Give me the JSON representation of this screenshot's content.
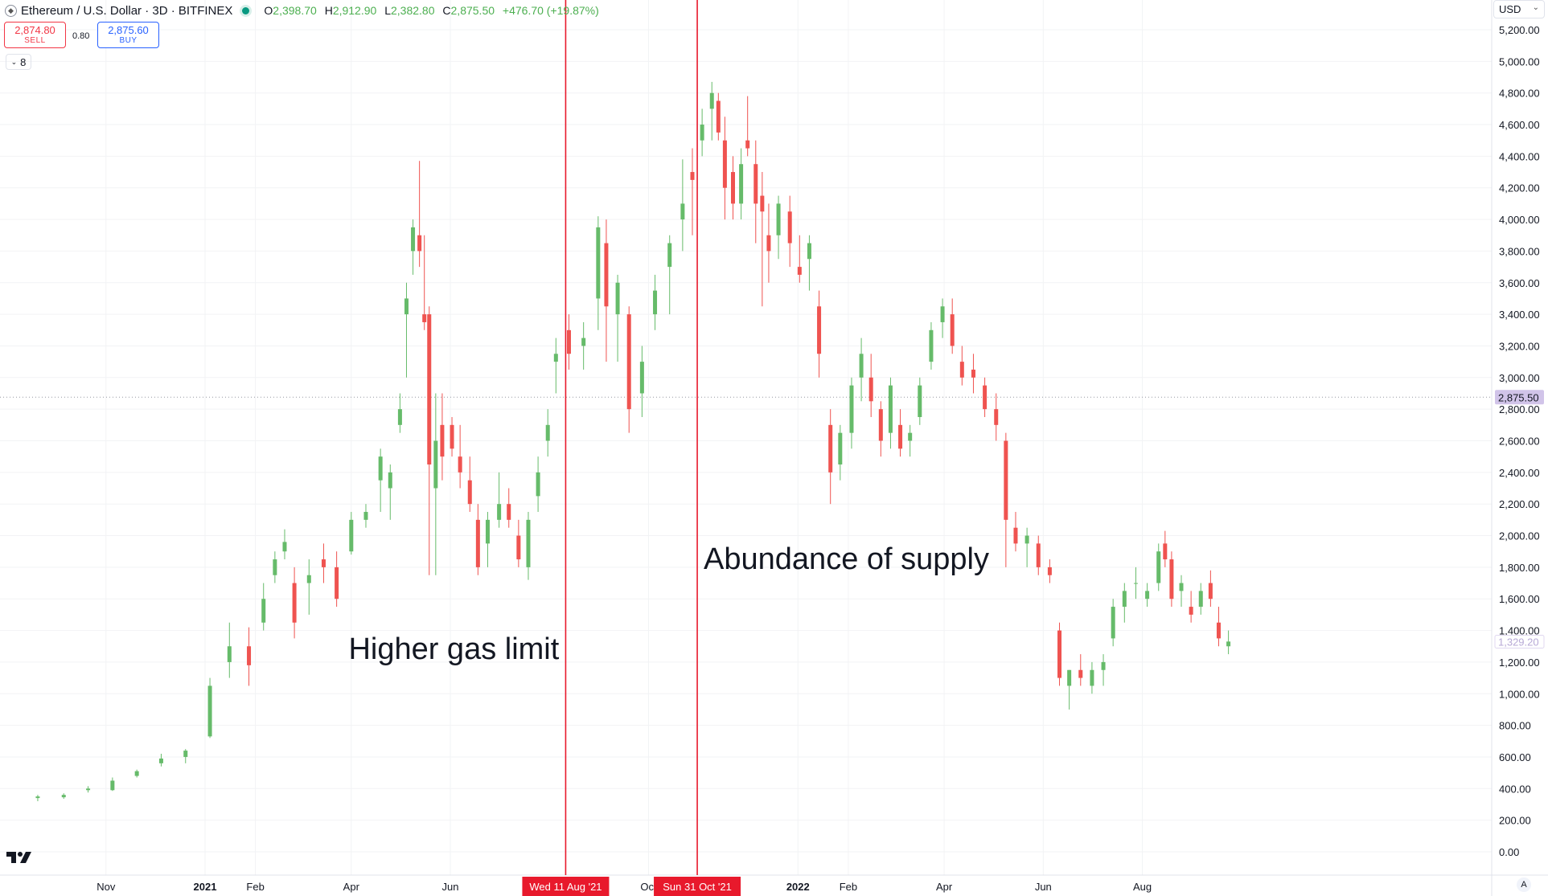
{
  "symbol": {
    "title": "Ethereum / U.S. Dollar · 3D · BITFINEX",
    "ohlc": {
      "o_label": "O",
      "o": "2,398.70",
      "h_label": "H",
      "h": "2,912.90",
      "l_label": "L",
      "l": "2,382.80",
      "c_label": "C",
      "c": "2,875.50",
      "change": "+476.70 (+19.87%)"
    }
  },
  "trade": {
    "sell_price": "2,874.80",
    "sell_label": "SELL",
    "spread": "0.80",
    "buy_price": "2,875.60",
    "buy_label": "BUY"
  },
  "indicators_count": "8",
  "currency": "USD",
  "auto_label": "A",
  "colors": {
    "up": "#66bb6a",
    "down": "#ef5350",
    "marker": "#e8192c",
    "grid": "#f2f3f5",
    "price_tag": "#d1c4e9"
  },
  "chart_data": {
    "type": "candlestick",
    "ylim": [
      0,
      5200
    ],
    "y_ticks": [
      "0.00",
      "200.00",
      "400.00",
      "600.00",
      "800.00",
      "1,000.00",
      "1,200.00",
      "1,400.00",
      "1,600.00",
      "1,800.00",
      "2,000.00",
      "2,200.00",
      "2,400.00",
      "2,600.00",
      "2,800.00",
      "3,000.00",
      "3,200.00",
      "3,400.00",
      "3,600.00",
      "3,800.00",
      "4,000.00",
      "4,200.00",
      "4,400.00",
      "4,600.00",
      "4,800.00",
      "5,000.00",
      "5,200.00"
    ],
    "x_ticks": [
      {
        "date": "2020-11-01",
        "label": "Nov",
        "bold": false
      },
      {
        "date": "2021-01-01",
        "label": "2021",
        "bold": true
      },
      {
        "date": "2021-02-01",
        "label": "Feb",
        "bold": false
      },
      {
        "date": "2021-04-01",
        "label": "Apr",
        "bold": false
      },
      {
        "date": "2021-06-01",
        "label": "Jun",
        "bold": false
      },
      {
        "date": "2021-10-01",
        "label": "Oct",
        "bold": false
      },
      {
        "date": "2022-01-01",
        "label": "2022",
        "bold": true
      },
      {
        "date": "2022-02-01",
        "label": "Feb",
        "bold": false
      },
      {
        "date": "2022-04-01",
        "label": "Apr",
        "bold": false
      },
      {
        "date": "2022-06-01",
        "label": "Jun",
        "bold": false
      },
      {
        "date": "2022-08-01",
        "label": "Aug",
        "bold": false
      }
    ],
    "markers": [
      {
        "date": "2021-08-11",
        "label": "Wed 11 Aug '21",
        "annotation": "Higher gas limit"
      },
      {
        "date": "2021-10-31",
        "label": "Sun 31 Oct '21",
        "annotation": "Abundance of supply"
      }
    ],
    "current_price": {
      "value": 2875.5,
      "label": "2,875.50"
    },
    "last_close": {
      "value": 1329.2,
      "label": "1,329.20"
    },
    "series": [
      {
        "date": "2020-09-20",
        "o": 340,
        "h": 360,
        "l": 320,
        "c": 350
      },
      {
        "date": "2020-10-06",
        "o": 345,
        "h": 370,
        "l": 335,
        "c": 360
      },
      {
        "date": "2020-10-21",
        "o": 390,
        "h": 415,
        "l": 375,
        "c": 400
      },
      {
        "date": "2020-11-05",
        "o": 390,
        "h": 470,
        "l": 385,
        "c": 450
      },
      {
        "date": "2020-11-20",
        "o": 480,
        "h": 520,
        "l": 470,
        "c": 510
      },
      {
        "date": "2020-12-05",
        "o": 560,
        "h": 620,
        "l": 540,
        "c": 590
      },
      {
        "date": "2020-12-20",
        "o": 600,
        "h": 650,
        "l": 560,
        "c": 640
      },
      {
        "date": "2021-01-04",
        "o": 730,
        "h": 1100,
        "l": 720,
        "c": 1050
      },
      {
        "date": "2021-01-16",
        "o": 1200,
        "h": 1450,
        "l": 1100,
        "c": 1300
      },
      {
        "date": "2021-01-28",
        "o": 1300,
        "h": 1420,
        "l": 1050,
        "c": 1180
      },
      {
        "date": "2021-02-06",
        "o": 1450,
        "h": 1700,
        "l": 1400,
        "c": 1600
      },
      {
        "date": "2021-02-13",
        "o": 1750,
        "h": 1900,
        "l": 1700,
        "c": 1850
      },
      {
        "date": "2021-02-19",
        "o": 1900,
        "h": 2040,
        "l": 1850,
        "c": 1960
      },
      {
        "date": "2021-02-25",
        "o": 1700,
        "h": 1800,
        "l": 1350,
        "c": 1450
      },
      {
        "date": "2021-03-06",
        "o": 1700,
        "h": 1850,
        "l": 1500,
        "c": 1750
      },
      {
        "date": "2021-03-15",
        "o": 1850,
        "h": 1950,
        "l": 1700,
        "c": 1800
      },
      {
        "date": "2021-03-23",
        "o": 1800,
        "h": 1900,
        "l": 1550,
        "c": 1600
      },
      {
        "date": "2021-04-01",
        "o": 1900,
        "h": 2150,
        "l": 1880,
        "c": 2100
      },
      {
        "date": "2021-04-10",
        "o": 2100,
        "h": 2200,
        "l": 2050,
        "c": 2150
      },
      {
        "date": "2021-04-19",
        "o": 2350,
        "h": 2550,
        "l": 2150,
        "c": 2500
      },
      {
        "date": "2021-04-25",
        "o": 2300,
        "h": 2450,
        "l": 2100,
        "c": 2400
      },
      {
        "date": "2021-05-01",
        "o": 2700,
        "h": 2900,
        "l": 2650,
        "c": 2800
      },
      {
        "date": "2021-05-05",
        "o": 3400,
        "h": 3600,
        "l": 3000,
        "c": 3500
      },
      {
        "date": "2021-05-09",
        "o": 3800,
        "h": 4000,
        "l": 3650,
        "c": 3950
      },
      {
        "date": "2021-05-13",
        "o": 3900,
        "h": 4370,
        "l": 3700,
        "c": 3800
      },
      {
        "date": "2021-05-16",
        "o": 3400,
        "h": 3900,
        "l": 3300,
        "c": 3350
      },
      {
        "date": "2021-05-19",
        "o": 3400,
        "h": 3450,
        "l": 1750,
        "c": 2450
      },
      {
        "date": "2021-05-23",
        "o": 2300,
        "h": 2900,
        "l": 1750,
        "c": 2600
      },
      {
        "date": "2021-05-27",
        "o": 2700,
        "h": 2900,
        "l": 2350,
        "c": 2500
      },
      {
        "date": "2021-06-02",
        "o": 2700,
        "h": 2750,
        "l": 2500,
        "c": 2550
      },
      {
        "date": "2021-06-07",
        "o": 2500,
        "h": 2700,
        "l": 2300,
        "c": 2400
      },
      {
        "date": "2021-06-13",
        "o": 2350,
        "h": 2500,
        "l": 2150,
        "c": 2200
      },
      {
        "date": "2021-06-18",
        "o": 2100,
        "h": 2200,
        "l": 1750,
        "c": 1800
      },
      {
        "date": "2021-06-24",
        "o": 1950,
        "h": 2150,
        "l": 1800,
        "c": 2100
      },
      {
        "date": "2021-07-01",
        "o": 2100,
        "h": 2400,
        "l": 2050,
        "c": 2200
      },
      {
        "date": "2021-07-07",
        "o": 2200,
        "h": 2300,
        "l": 2050,
        "c": 2100
      },
      {
        "date": "2021-07-13",
        "o": 2000,
        "h": 2100,
        "l": 1800,
        "c": 1850
      },
      {
        "date": "2021-07-19",
        "o": 1800,
        "h": 2150,
        "l": 1720,
        "c": 2100
      },
      {
        "date": "2021-07-25",
        "o": 2250,
        "h": 2500,
        "l": 2150,
        "c": 2400
      },
      {
        "date": "2021-07-31",
        "o": 2600,
        "h": 2800,
        "l": 2500,
        "c": 2700
      },
      {
        "date": "2021-08-05",
        "o": 3100,
        "h": 3250,
        "l": 2900,
        "c": 3150
      },
      {
        "date": "2021-08-13",
        "o": 3300,
        "h": 3400,
        "l": 3050,
        "c": 3150
      },
      {
        "date": "2021-08-22",
        "o": 3200,
        "h": 3350,
        "l": 3050,
        "c": 3250
      },
      {
        "date": "2021-08-31",
        "o": 3500,
        "h": 4020,
        "l": 3300,
        "c": 3950
      },
      {
        "date": "2021-09-05",
        "o": 3850,
        "h": 4000,
        "l": 3100,
        "c": 3450
      },
      {
        "date": "2021-09-12",
        "o": 3400,
        "h": 3650,
        "l": 3100,
        "c": 3600
      },
      {
        "date": "2021-09-19",
        "o": 3400,
        "h": 3450,
        "l": 2650,
        "c": 2800
      },
      {
        "date": "2021-09-27",
        "o": 2900,
        "h": 3200,
        "l": 2750,
        "c": 3100
      },
      {
        "date": "2021-10-05",
        "o": 3400,
        "h": 3650,
        "l": 3300,
        "c": 3550
      },
      {
        "date": "2021-10-14",
        "o": 3700,
        "h": 3900,
        "l": 3400,
        "c": 3850
      },
      {
        "date": "2021-10-22",
        "o": 4000,
        "h": 4380,
        "l": 3800,
        "c": 4100
      },
      {
        "date": "2021-10-28",
        "o": 4300,
        "h": 4450,
        "l": 3900,
        "c": 4250
      },
      {
        "date": "2021-11-03",
        "o": 4500,
        "h": 4700,
        "l": 4400,
        "c": 4600
      },
      {
        "date": "2021-11-09",
        "o": 4700,
        "h": 4870,
        "l": 4500,
        "c": 4800
      },
      {
        "date": "2021-11-13",
        "o": 4750,
        "h": 4800,
        "l": 4500,
        "c": 4550
      },
      {
        "date": "2021-11-17",
        "o": 4500,
        "h": 4650,
        "l": 4000,
        "c": 4200
      },
      {
        "date": "2021-11-22",
        "o": 4300,
        "h": 4400,
        "l": 4000,
        "c": 4100
      },
      {
        "date": "2021-11-27",
        "o": 4100,
        "h": 4450,
        "l": 4000,
        "c": 4350
      },
      {
        "date": "2021-12-01",
        "o": 4500,
        "h": 4780,
        "l": 4400,
        "c": 4450
      },
      {
        "date": "2021-12-06",
        "o": 4350,
        "h": 4500,
        "l": 3850,
        "c": 4100
      },
      {
        "date": "2021-12-10",
        "o": 4150,
        "h": 4300,
        "l": 3450,
        "c": 4050
      },
      {
        "date": "2021-12-14",
        "o": 3900,
        "h": 4100,
        "l": 3600,
        "c": 3800
      },
      {
        "date": "2021-12-20",
        "o": 3900,
        "h": 4150,
        "l": 3750,
        "c": 4100
      },
      {
        "date": "2021-12-27",
        "o": 4050,
        "h": 4150,
        "l": 3700,
        "c": 3850
      },
      {
        "date": "2022-01-02",
        "o": 3700,
        "h": 3900,
        "l": 3600,
        "c": 3650
      },
      {
        "date": "2022-01-08",
        "o": 3750,
        "h": 3900,
        "l": 3550,
        "c": 3850
      },
      {
        "date": "2022-01-14",
        "o": 3450,
        "h": 3550,
        "l": 3000,
        "c": 3150
      },
      {
        "date": "2022-01-21",
        "o": 2700,
        "h": 2800,
        "l": 2200,
        "c": 2400
      },
      {
        "date": "2022-01-27",
        "o": 2450,
        "h": 2700,
        "l": 2350,
        "c": 2650
      },
      {
        "date": "2022-02-03",
        "o": 2650,
        "h": 3000,
        "l": 2550,
        "c": 2950
      },
      {
        "date": "2022-02-09",
        "o": 3000,
        "h": 3250,
        "l": 2850,
        "c": 3150
      },
      {
        "date": "2022-02-15",
        "o": 3000,
        "h": 3150,
        "l": 2750,
        "c": 2850
      },
      {
        "date": "2022-02-21",
        "o": 2800,
        "h": 2850,
        "l": 2500,
        "c": 2600
      },
      {
        "date": "2022-02-27",
        "o": 2650,
        "h": 3000,
        "l": 2550,
        "c": 2950
      },
      {
        "date": "2022-03-05",
        "o": 2700,
        "h": 2800,
        "l": 2500,
        "c": 2550
      },
      {
        "date": "2022-03-11",
        "o": 2600,
        "h": 2700,
        "l": 2500,
        "c": 2650
      },
      {
        "date": "2022-03-17",
        "o": 2750,
        "h": 3000,
        "l": 2700,
        "c": 2950
      },
      {
        "date": "2022-03-24",
        "o": 3100,
        "h": 3350,
        "l": 3050,
        "c": 3300
      },
      {
        "date": "2022-03-31",
        "o": 3350,
        "h": 3500,
        "l": 3250,
        "c": 3450
      },
      {
        "date": "2022-04-06",
        "o": 3400,
        "h": 3500,
        "l": 3150,
        "c": 3200
      },
      {
        "date": "2022-04-12",
        "o": 3100,
        "h": 3200,
        "l": 2950,
        "c": 3000
      },
      {
        "date": "2022-04-19",
        "o": 3050,
        "h": 3150,
        "l": 2900,
        "c": 3000
      },
      {
        "date": "2022-04-26",
        "o": 2950,
        "h": 3000,
        "l": 2750,
        "c": 2800
      },
      {
        "date": "2022-05-03",
        "o": 2800,
        "h": 2900,
        "l": 2600,
        "c": 2700
      },
      {
        "date": "2022-05-09",
        "o": 2600,
        "h": 2650,
        "l": 1800,
        "c": 2100
      },
      {
        "date": "2022-05-15",
        "o": 2050,
        "h": 2150,
        "l": 1900,
        "c": 1950
      },
      {
        "date": "2022-05-22",
        "o": 1950,
        "h": 2050,
        "l": 1800,
        "c": 2000
      },
      {
        "date": "2022-05-29",
        "o": 1950,
        "h": 2000,
        "l": 1750,
        "c": 1800
      },
      {
        "date": "2022-06-05",
        "o": 1800,
        "h": 1850,
        "l": 1700,
        "c": 1750
      },
      {
        "date": "2022-06-11",
        "o": 1400,
        "h": 1450,
        "l": 1050,
        "c": 1100
      },
      {
        "date": "2022-06-17",
        "o": 1050,
        "h": 1150,
        "l": 900,
        "c": 1150
      },
      {
        "date": "2022-06-24",
        "o": 1150,
        "h": 1250,
        "l": 1050,
        "c": 1100
      },
      {
        "date": "2022-07-01",
        "o": 1050,
        "h": 1200,
        "l": 1000,
        "c": 1150
      },
      {
        "date": "2022-07-08",
        "o": 1150,
        "h": 1250,
        "l": 1050,
        "c": 1200
      },
      {
        "date": "2022-07-14",
        "o": 1350,
        "h": 1600,
        "l": 1300,
        "c": 1550
      },
      {
        "date": "2022-07-21",
        "o": 1550,
        "h": 1700,
        "l": 1450,
        "c": 1650
      },
      {
        "date": "2022-07-28",
        "o": 1700,
        "h": 1800,
        "l": 1600,
        "c": 1700
      },
      {
        "date": "2022-08-04",
        "o": 1600,
        "h": 1700,
        "l": 1550,
        "c": 1650
      },
      {
        "date": "2022-08-11",
        "o": 1700,
        "h": 1950,
        "l": 1650,
        "c": 1900
      },
      {
        "date": "2022-08-15",
        "o": 1950,
        "h": 2030,
        "l": 1800,
        "c": 1850
      },
      {
        "date": "2022-08-19",
        "o": 1850,
        "h": 1900,
        "l": 1550,
        "c": 1600
      },
      {
        "date": "2022-08-25",
        "o": 1650,
        "h": 1750,
        "l": 1550,
        "c": 1700
      },
      {
        "date": "2022-08-31",
        "o": 1550,
        "h": 1650,
        "l": 1450,
        "c": 1500
      },
      {
        "date": "2022-09-06",
        "o": 1550,
        "h": 1700,
        "l": 1500,
        "c": 1650
      },
      {
        "date": "2022-09-12",
        "o": 1700,
        "h": 1780,
        "l": 1550,
        "c": 1600
      },
      {
        "date": "2022-09-17",
        "o": 1450,
        "h": 1550,
        "l": 1300,
        "c": 1350
      },
      {
        "date": "2022-09-23",
        "o": 1300,
        "h": 1400,
        "l": 1250,
        "c": 1330
      }
    ]
  }
}
